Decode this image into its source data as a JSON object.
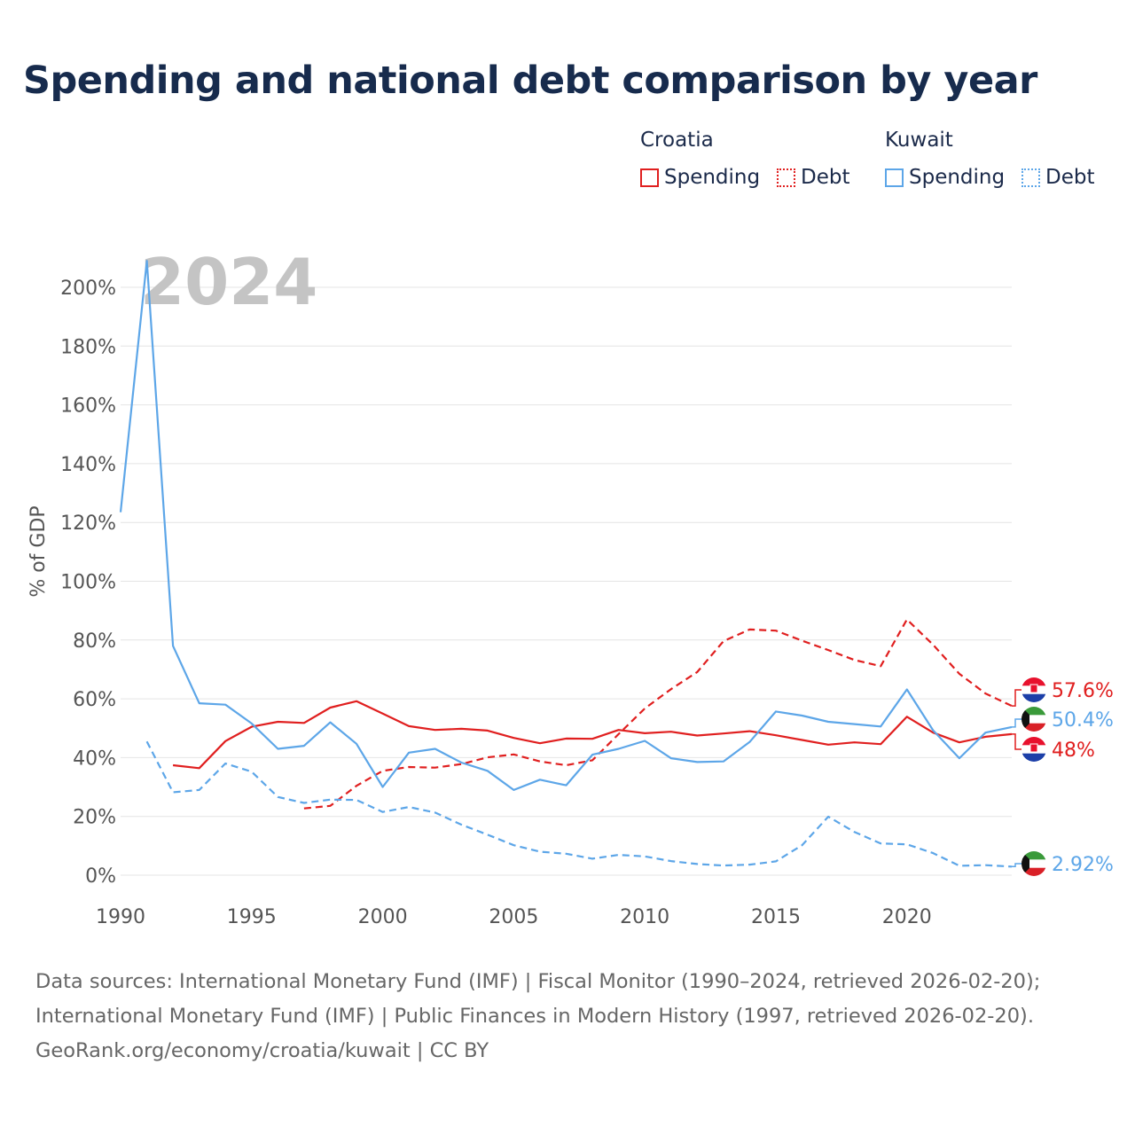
{
  "title": "Spending and national debt comparison by year",
  "legend": {
    "groups": [
      {
        "country": "Croatia",
        "items": [
          {
            "label": "Spending",
            "style": "solid",
            "color": "#e01f1f"
          },
          {
            "label": "Debt",
            "style": "dotted",
            "color": "#e01f1f"
          }
        ]
      },
      {
        "country": "Kuwait",
        "items": [
          {
            "label": "Spending",
            "style": "solid",
            "color": "#5da6e8"
          },
          {
            "label": "Debt",
            "style": "dotted",
            "color": "#5da6e8"
          }
        ]
      }
    ]
  },
  "year_watermark": "2024",
  "footer": {
    "line1": "Data sources: International Monetary Fund (IMF) | Fiscal Monitor (1990–2024, retrieved 2026-02-20);",
    "line2": "International Monetary Fund (IMF) | Public Finances in Modern History (1997, retrieved 2026-02-20).",
    "line3": "GeoRank.org/economy/croatia/kuwait | CC BY"
  },
  "chart_data": {
    "type": "line",
    "ylabel": "% of GDP",
    "xlabel": "",
    "xlim": [
      1990,
      2024
    ],
    "ylim": [
      0,
      210
    ],
    "x_ticks": [
      1990,
      1995,
      2000,
      2005,
      2010,
      2015,
      2020
    ],
    "y_ticks": [
      0,
      20,
      40,
      60,
      80,
      100,
      120,
      140,
      160,
      180,
      200
    ],
    "y_tick_labels": [
      "0%",
      "20%",
      "40%",
      "60%",
      "80%",
      "100%",
      "120%",
      "140%",
      "160%",
      "180%",
      "200%"
    ],
    "grid": true,
    "series": [
      {
        "name": "Croatia Spending",
        "country": "Croatia",
        "metric": "Spending",
        "dash": "solid",
        "color": "#e01f1f",
        "end_label": "48%",
        "end_value": 48,
        "points": [
          [
            1992,
            37.4
          ],
          [
            1993,
            36.4
          ],
          [
            1994,
            45.6
          ],
          [
            1995,
            50.5
          ],
          [
            1996,
            52.2
          ],
          [
            1997,
            51.8
          ],
          [
            1998,
            57
          ],
          [
            1999,
            59.2
          ],
          [
            2000,
            55
          ],
          [
            2001,
            50.7
          ],
          [
            2002,
            49.4
          ],
          [
            2003,
            49.8
          ],
          [
            2004,
            49.2
          ],
          [
            2005,
            46.7
          ],
          [
            2006,
            44.9
          ],
          [
            2007,
            46.5
          ],
          [
            2008,
            46.4
          ],
          [
            2009,
            49.4
          ],
          [
            2010,
            48.3
          ],
          [
            2011,
            48.8
          ],
          [
            2012,
            47.5
          ],
          [
            2013,
            48.2
          ],
          [
            2014,
            49
          ],
          [
            2015,
            47.6
          ],
          [
            2016,
            46
          ],
          [
            2017,
            44.4
          ],
          [
            2018,
            45.2
          ],
          [
            2019,
            44.6
          ],
          [
            2020,
            53.9
          ],
          [
            2021,
            48.5
          ],
          [
            2022,
            45.2
          ],
          [
            2023,
            47.1
          ],
          [
            2024,
            48
          ]
        ]
      },
      {
        "name": "Croatia Debt",
        "country": "Croatia",
        "metric": "Debt",
        "dash": "dashed",
        "color": "#e01f1f",
        "end_label": "57.6%",
        "end_value": 57.6,
        "points": [
          [
            1997,
            22.7
          ],
          [
            1998,
            23.6
          ],
          [
            1999,
            30.4
          ],
          [
            2000,
            35.5
          ],
          [
            2001,
            36.8
          ],
          [
            2002,
            36.6
          ],
          [
            2003,
            37.8
          ],
          [
            2004,
            40.1
          ],
          [
            2005,
            41.1
          ],
          [
            2006,
            38.7
          ],
          [
            2007,
            37.4
          ],
          [
            2008,
            39.1
          ],
          [
            2009,
            48
          ],
          [
            2010,
            56.7
          ],
          [
            2011,
            63.3
          ],
          [
            2012,
            69.1
          ],
          [
            2013,
            79.6
          ],
          [
            2014,
            83.6
          ],
          [
            2015,
            83.2
          ],
          [
            2016,
            79.8
          ],
          [
            2017,
            76.6
          ],
          [
            2018,
            73.2
          ],
          [
            2019,
            71.1
          ],
          [
            2020,
            87
          ],
          [
            2021,
            78.4
          ],
          [
            2022,
            68.5
          ],
          [
            2023,
            61.8
          ],
          [
            2024,
            57.6
          ]
        ]
      },
      {
        "name": "Kuwait Spending",
        "country": "Kuwait",
        "metric": "Spending",
        "dash": "solid",
        "color": "#5da6e8",
        "end_label": "50.4%",
        "end_value": 50.4,
        "points": [
          [
            1990,
            123.5
          ],
          [
            1991,
            209
          ],
          [
            1992,
            78
          ],
          [
            1993,
            58.5
          ],
          [
            1994,
            58
          ],
          [
            1995,
            51.6
          ],
          [
            1996,
            43
          ],
          [
            1997,
            44
          ],
          [
            1998,
            52
          ],
          [
            1999,
            44.7
          ],
          [
            2000,
            30
          ],
          [
            2001,
            41.7
          ],
          [
            2002,
            43
          ],
          [
            2003,
            38.3
          ],
          [
            2004,
            35.5
          ],
          [
            2005,
            29
          ],
          [
            2006,
            32.5
          ],
          [
            2007,
            30.6
          ],
          [
            2008,
            41
          ],
          [
            2009,
            43
          ],
          [
            2010,
            45.7
          ],
          [
            2011,
            39.8
          ],
          [
            2012,
            38.5
          ],
          [
            2013,
            38.7
          ],
          [
            2014,
            45.3
          ],
          [
            2015,
            55.7
          ],
          [
            2016,
            54.3
          ],
          [
            2017,
            52.2
          ],
          [
            2018,
            51.4
          ],
          [
            2019,
            50.6
          ],
          [
            2020,
            63.2
          ],
          [
            2021,
            49.3
          ],
          [
            2022,
            39.8
          ],
          [
            2023,
            48.5
          ],
          [
            2024,
            50.4
          ]
        ]
      },
      {
        "name": "Kuwait Debt",
        "country": "Kuwait",
        "metric": "Debt",
        "dash": "dashed",
        "color": "#5da6e8",
        "end_label": "2.92%",
        "end_value": 2.92,
        "points": [
          [
            1991,
            45.5
          ],
          [
            1992,
            28.2
          ],
          [
            1993,
            29
          ],
          [
            1994,
            38
          ],
          [
            1995,
            35.2
          ],
          [
            1996,
            26.6
          ],
          [
            1997,
            24.6
          ],
          [
            1998,
            25.7
          ],
          [
            1999,
            25.6
          ],
          [
            2000,
            21.5
          ],
          [
            2001,
            23.2
          ],
          [
            2002,
            21.3
          ],
          [
            2003,
            17.2
          ],
          [
            2004,
            13.8
          ],
          [
            2005,
            10.2
          ],
          [
            2006,
            8
          ],
          [
            2007,
            7.3
          ],
          [
            2008,
            5.6
          ],
          [
            2009,
            6.9
          ],
          [
            2010,
            6.4
          ],
          [
            2011,
            4.8
          ],
          [
            2012,
            3.8
          ],
          [
            2013,
            3.3
          ],
          [
            2014,
            3.6
          ],
          [
            2015,
            4.7
          ],
          [
            2016,
            10.2
          ],
          [
            2017,
            19.9
          ],
          [
            2018,
            14.7
          ],
          [
            2019,
            10.8
          ],
          [
            2020,
            10.5
          ],
          [
            2021,
            7.5
          ],
          [
            2022,
            3.2
          ],
          [
            2023,
            3.4
          ],
          [
            2024,
            2.92
          ]
        ]
      }
    ]
  }
}
